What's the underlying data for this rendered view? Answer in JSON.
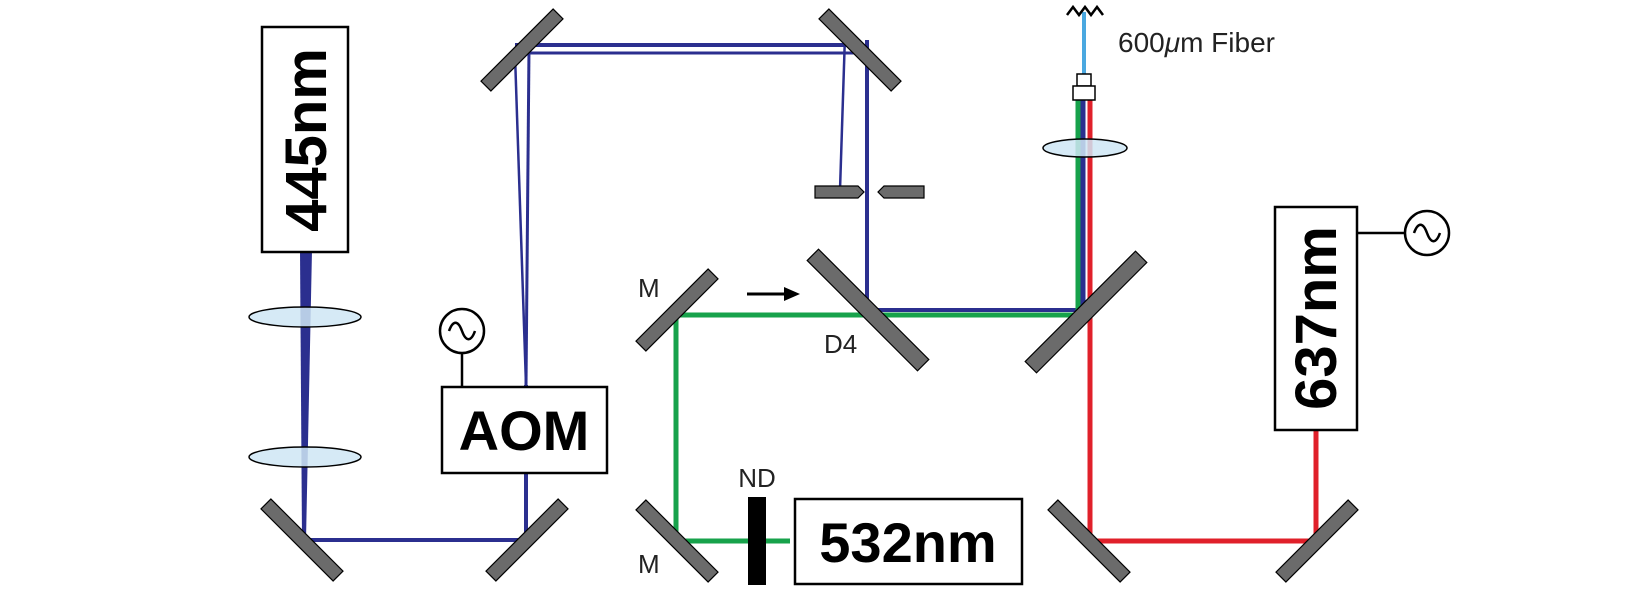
{
  "labels": {
    "laser_445": "445nm",
    "laser_637": "637nm",
    "laser_532": "532nm",
    "aom": "AOM",
    "fiber_prefix": "600",
    "fiber_mu": "μ",
    "fiber_suffix": "m Fiber",
    "mirror_m_top": "M",
    "mirror_m_bottom": "M",
    "dichroic": "D4",
    "nd_filter": "ND"
  },
  "colors": {
    "blue_beam": "#2b2f8f",
    "green_beam": "#17a24b",
    "red_beam": "#e0202a",
    "fiber": "#4aa8e0",
    "mirror": "#6b6b6b",
    "lens_fill": "#cfe6f5"
  }
}
